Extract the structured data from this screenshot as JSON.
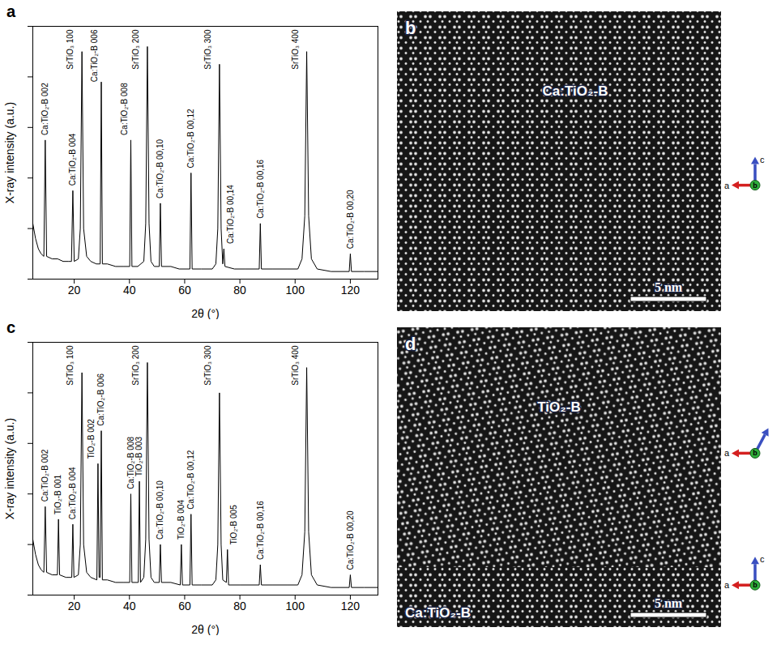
{
  "chart_data": [
    {
      "panel": "a",
      "type": "line",
      "x_label": "2θ (°)",
      "y_label": "X-ray intensity (a.u.)",
      "xlim": [
        5,
        130
      ],
      "xticks": [
        20,
        40,
        60,
        80,
        100,
        120
      ],
      "ylim": [
        0,
        100
      ],
      "yticks": [
        0,
        20,
        40,
        60,
        80,
        100
      ],
      "tick_labels": "x",
      "grid": false,
      "color": "#000000",
      "x": [
        5,
        6,
        7,
        8,
        9,
        9.5,
        10,
        12,
        14,
        16,
        18,
        19,
        19.5,
        20,
        21.5,
        22.2,
        22.8,
        23.4,
        24.5,
        26,
        28,
        29.4,
        29.8,
        30.2,
        32,
        35,
        38,
        40.1,
        40.5,
        40.9,
        43,
        45.2,
        45.9,
        46.5,
        47.1,
        47.8,
        49,
        50.8,
        51.2,
        51.6,
        55,
        58,
        61.9,
        62.3,
        62.7,
        66,
        70,
        71.3,
        72,
        72.6,
        73.2,
        73.8,
        74.2,
        74.6,
        78,
        82,
        87,
        87.4,
        87.8,
        92,
        97,
        101,
        102.5,
        103.5,
        104.2,
        104.9,
        105.9,
        108,
        113,
        119.6,
        120,
        120.4,
        125,
        130
      ],
      "values": [
        22,
        16,
        12,
        10,
        9,
        55,
        9,
        8,
        8,
        7,
        7,
        7,
        35,
        7,
        8,
        20,
        90,
        20,
        9,
        7,
        6,
        6,
        78,
        6,
        6,
        5,
        5,
        5,
        55,
        5,
        5,
        7,
        22,
        92,
        22,
        7,
        5,
        5,
        30,
        5,
        5,
        4,
        4,
        42,
        4,
        4,
        4,
        6,
        20,
        85,
        20,
        6,
        12,
        5,
        4,
        4,
        4,
        22,
        4,
        4,
        4,
        4,
        8,
        25,
        90,
        25,
        8,
        4,
        3,
        3,
        10,
        3,
        3,
        3
      ],
      "annotations": [
        {
          "text": "Ca:TiO₂-B 002",
          "x": 9.5
        },
        {
          "text": "Ca:TiO₂-B 004",
          "x": 19.5
        },
        {
          "text": "SrTiO₃ 100",
          "x": 22.8
        },
        {
          "text": "Ca:TiO₂-B 006",
          "x": 29.8
        },
        {
          "text": "Ca:TiO₂-B 008",
          "x": 40.5
        },
        {
          "text": "SrTiO₃ 200",
          "x": 46.5
        },
        {
          "text": "Ca:TiO₂-B 00,10",
          "x": 51.2
        },
        {
          "text": "Ca:TiO₂-B 00,12",
          "x": 62.3
        },
        {
          "text": "SrTiO₃ 300",
          "x": 72.6
        },
        {
          "text": "Ca:TiO₂-B 00,14",
          "x": 74.2
        },
        {
          "text": "Ca:TiO₂-B 00,16",
          "x": 87.4
        },
        {
          "text": "SrTiO₃ 400",
          "x": 104.2
        },
        {
          "text": "Ca:TiO₂-B 00,20",
          "x": 120
        }
      ]
    },
    {
      "panel": "c",
      "type": "line",
      "x_label": "2θ (°)",
      "y_label": "X-ray intensity (a.u.)",
      "xlim": [
        5,
        130
      ],
      "xticks": [
        20,
        40,
        60,
        80,
        100,
        120
      ],
      "ylim": [
        0,
        100
      ],
      "yticks": [
        0,
        20,
        40,
        60,
        80,
        100
      ],
      "tick_labels": "x",
      "grid": false,
      "color": "#000000",
      "x": [
        5,
        6,
        7,
        8,
        9,
        9.5,
        10,
        12,
        13.9,
        14.3,
        14.7,
        17,
        19.1,
        19.5,
        19.9,
        21.5,
        22.2,
        22.8,
        23.4,
        24.5,
        26,
        28.2,
        28.6,
        29,
        29.4,
        29.8,
        30.2,
        32,
        35,
        38,
        40.1,
        40.5,
        40.9,
        43.2,
        43.6,
        44,
        45.2,
        45.9,
        46.5,
        47.1,
        47.8,
        49,
        50.8,
        51.2,
        51.6,
        55,
        58.4,
        58.8,
        59.2,
        61.9,
        62.3,
        62.7,
        66,
        70,
        71.3,
        72,
        72.6,
        73.2,
        73.8,
        75.1,
        75.5,
        75.9,
        80,
        87,
        87.4,
        87.8,
        92,
        97,
        101,
        102.5,
        103.5,
        104.2,
        104.9,
        105.9,
        108,
        113,
        119.6,
        120,
        120.4,
        125,
        130
      ],
      "values": [
        22,
        16,
        12,
        10,
        9,
        35,
        9,
        8,
        8,
        30,
        8,
        7,
        7,
        28,
        7,
        8,
        20,
        88,
        20,
        9,
        7,
        6,
        52,
        7,
        7,
        65,
        6,
        6,
        5,
        5,
        5,
        40,
        5,
        5,
        45,
        5,
        7,
        22,
        92,
        22,
        7,
        5,
        5,
        20,
        5,
        5,
        4,
        20,
        4,
        4,
        32,
        4,
        4,
        4,
        6,
        20,
        80,
        20,
        6,
        5,
        18,
        4,
        4,
        4,
        12,
        4,
        4,
        4,
        4,
        8,
        25,
        90,
        25,
        8,
        4,
        3,
        3,
        8,
        3,
        3,
        3
      ],
      "annotations": [
        {
          "text": "Ca:TiO₂-B 002",
          "x": 9.5
        },
        {
          "text": "TiO₂-B 001",
          "x": 14.3
        },
        {
          "text": "Ca:TiO₂-B 004",
          "x": 19.5
        },
        {
          "text": "SrTiO₃ 100",
          "x": 22.8
        },
        {
          "text": "TiO₂-B 002",
          "x": 28.6
        },
        {
          "text": "Ca:TiO₂-B 006",
          "x": 29.8
        },
        {
          "text": "Ca:TiO₂-B 008",
          "x": 40.5
        },
        {
          "text": "TiO₂-B 003",
          "x": 43.6
        },
        {
          "text": "SrTiO₃ 200",
          "x": 46.5
        },
        {
          "text": "Ca:TiO₂-B 00,10",
          "x": 51.2
        },
        {
          "text": "TiO₂-B 004",
          "x": 58.8
        },
        {
          "text": "Ca:TiO₂-B 00,12",
          "x": 62.3
        },
        {
          "text": "SrTiO₃ 300",
          "x": 72.6
        },
        {
          "text": "TiO₂-B 005",
          "x": 75.5
        },
        {
          "text": "Ca:TiO₂-B 00,16",
          "x": 87.4
        },
        {
          "text": "SrTiO₃ 400",
          "x": 104.2
        },
        {
          "text": "Ca:TiO₂-B 00,20",
          "x": 120
        }
      ]
    }
  ],
  "images": [
    {
      "panel": "b",
      "labels": [
        "Ca:TiO₂-B"
      ],
      "scale_bar": "5 nm",
      "triads": [
        {
          "a": "a",
          "b": "b",
          "c": "c"
        }
      ]
    },
    {
      "panel": "d",
      "labels": [
        "TiO₂-B",
        "Ca:TiO₂-B"
      ],
      "scale_bar": "5 nm",
      "triads": [
        {
          "a": "a",
          "b": "b"
        },
        {
          "a": "a",
          "b": "b",
          "c": "c"
        }
      ]
    }
  ]
}
